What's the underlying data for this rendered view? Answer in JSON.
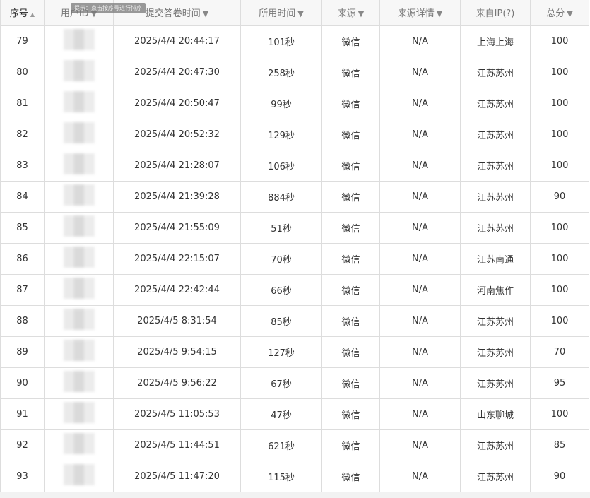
{
  "headers": [
    {
      "label": "序号",
      "icon": "sort-asc-icon"
    },
    {
      "label": "用户ID",
      "icon": "filter-icon"
    },
    {
      "label": "提交答卷时间",
      "icon": "filter-icon"
    },
    {
      "label": "所用时间",
      "icon": "filter-icon"
    },
    {
      "label": "来源",
      "icon": "filter-icon"
    },
    {
      "label": "来源详情",
      "icon": "filter-icon"
    },
    {
      "label": "来自IP(?)",
      "icon": ""
    },
    {
      "label": "总分",
      "icon": "filter-icon"
    }
  ],
  "tooltip": "提示：点击按序号进行排序",
  "rows": [
    {
      "no": "79",
      "time": "2025/4/4 20:44:17",
      "dur": "101秒",
      "src": "微信",
      "detail": "N/A",
      "ip": "上海上海",
      "score": "100"
    },
    {
      "no": "80",
      "time": "2025/4/4 20:47:30",
      "dur": "258秒",
      "src": "微信",
      "detail": "N/A",
      "ip": "江苏苏州",
      "score": "100"
    },
    {
      "no": "81",
      "time": "2025/4/4 20:50:47",
      "dur": "99秒",
      "src": "微信",
      "detail": "N/A",
      "ip": "江苏苏州",
      "score": "100"
    },
    {
      "no": "82",
      "time": "2025/4/4 20:52:32",
      "dur": "129秒",
      "src": "微信",
      "detail": "N/A",
      "ip": "江苏苏州",
      "score": "100"
    },
    {
      "no": "83",
      "time": "2025/4/4 21:28:07",
      "dur": "106秒",
      "src": "微信",
      "detail": "N/A",
      "ip": "江苏苏州",
      "score": "100"
    },
    {
      "no": "84",
      "time": "2025/4/4 21:39:28",
      "dur": "884秒",
      "src": "微信",
      "detail": "N/A",
      "ip": "江苏苏州",
      "score": "90"
    },
    {
      "no": "85",
      "time": "2025/4/4 21:55:09",
      "dur": "51秒",
      "src": "微信",
      "detail": "N/A",
      "ip": "江苏苏州",
      "score": "100"
    },
    {
      "no": "86",
      "time": "2025/4/4 22:15:07",
      "dur": "70秒",
      "src": "微信",
      "detail": "N/A",
      "ip": "江苏南通",
      "score": "100"
    },
    {
      "no": "87",
      "time": "2025/4/4 22:42:44",
      "dur": "66秒",
      "src": "微信",
      "detail": "N/A",
      "ip": "河南焦作",
      "score": "100"
    },
    {
      "no": "88",
      "time": "2025/4/5 8:31:54",
      "dur": "85秒",
      "src": "微信",
      "detail": "N/A",
      "ip": "江苏苏州",
      "score": "100"
    },
    {
      "no": "89",
      "time": "2025/4/5 9:54:15",
      "dur": "127秒",
      "src": "微信",
      "detail": "N/A",
      "ip": "江苏苏州",
      "score": "70"
    },
    {
      "no": "90",
      "time": "2025/4/5 9:56:22",
      "dur": "67秒",
      "src": "微信",
      "detail": "N/A",
      "ip": "江苏苏州",
      "score": "95"
    },
    {
      "no": "91",
      "time": "2025/4/5 11:05:53",
      "dur": "47秒",
      "src": "微信",
      "detail": "N/A",
      "ip": "山东聊城",
      "score": "100"
    },
    {
      "no": "92",
      "time": "2025/4/5 11:44:51",
      "dur": "621秒",
      "src": "微信",
      "detail": "N/A",
      "ip": "江苏苏州",
      "score": "85"
    },
    {
      "no": "93",
      "time": "2025/4/5 11:47:20",
      "dur": "115秒",
      "src": "微信",
      "detail": "N/A",
      "ip": "江苏苏州",
      "score": "90"
    }
  ]
}
